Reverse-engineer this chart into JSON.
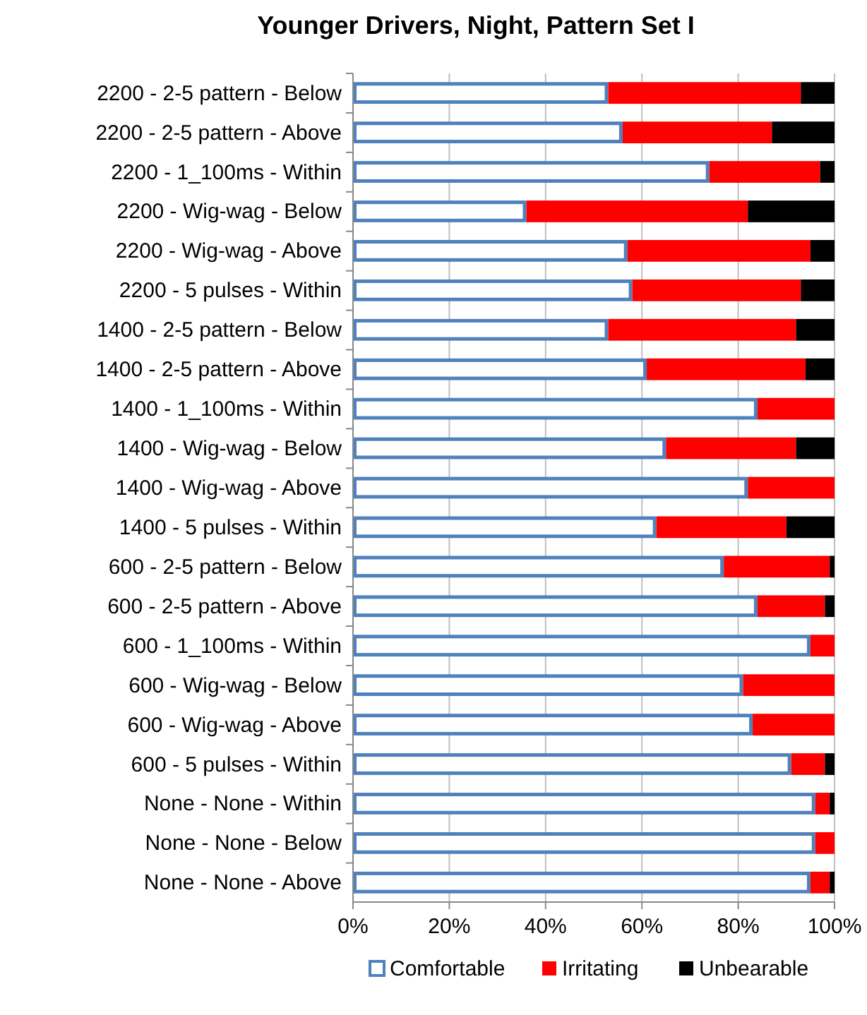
{
  "chart_data": {
    "type": "bar",
    "orientation": "horizontal",
    "stacked": true,
    "title": "Younger Drivers, Night, Pattern Set I",
    "categories": [
      "2200 - 2-5 pattern - Below",
      "2200 - 2-5 pattern - Above",
      "2200 - 1_100ms - Within",
      "2200 - Wig-wag - Below",
      "2200 - Wig-wag - Above",
      "2200 - 5 pulses - Within",
      "1400 - 2-5 pattern - Below",
      "1400 - 2-5 pattern - Above",
      "1400 - 1_100ms - Within",
      "1400 - Wig-wag - Below",
      "1400 - Wig-wag - Above",
      "1400 - 5 pulses - Within",
      "600 - 2-5 pattern - Below",
      "600 - 2-5 pattern - Above",
      "600 - 1_100ms - Within",
      "600 - Wig-wag - Below",
      "600 - Wig-wag - Above",
      "600 - 5 pulses - Within",
      "None - None - Within",
      "None - None - Below",
      "None - None - Above"
    ],
    "series": [
      {
        "name": "Comfortable",
        "color": "#4f81bd",
        "values": [
          0.53,
          0.56,
          0.74,
          0.36,
          0.57,
          0.58,
          0.53,
          0.61,
          0.84,
          0.65,
          0.82,
          0.63,
          0.77,
          0.84,
          0.95,
          0.81,
          0.83,
          0.91,
          0.96,
          0.96,
          0.95
        ]
      },
      {
        "name": "Irritating",
        "color": "#ff0000",
        "values": [
          0.4,
          0.31,
          0.23,
          0.46,
          0.38,
          0.35,
          0.39,
          0.33,
          0.16,
          0.27,
          0.18,
          0.27,
          0.22,
          0.14,
          0.05,
          0.19,
          0.17,
          0.07,
          0.03,
          0.04,
          0.04
        ]
      },
      {
        "name": "Unbearable",
        "color": "#000000",
        "values": [
          0.07,
          0.13,
          0.03,
          0.18,
          0.05,
          0.07,
          0.08,
          0.06,
          0,
          0.08,
          0,
          0.1,
          0.01,
          0.02,
          0,
          0,
          0,
          0.02,
          0.01,
          0,
          0.01
        ]
      }
    ],
    "xlim": [
      0,
      1
    ],
    "xticks": [
      {
        "value": 0,
        "label": "0%"
      },
      {
        "value": 0.2,
        "label": "20%"
      },
      {
        "value": 0.4,
        "label": "40%"
      },
      {
        "value": 0.6,
        "label": "60%"
      },
      {
        "value": 0.8,
        "label": "80%"
      },
      {
        "value": 1,
        "label": "100%"
      }
    ],
    "grid": "x",
    "legend": "bottom"
  }
}
